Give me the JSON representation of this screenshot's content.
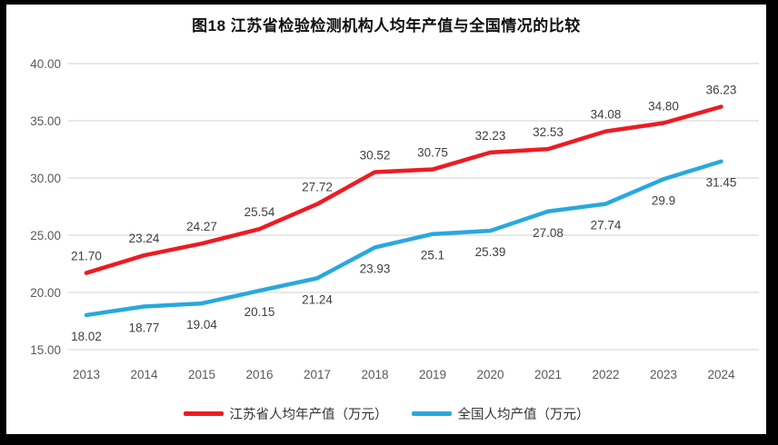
{
  "title": "图18  江苏省检验检测机构人均年产值与全国情况的比较",
  "chart_data": {
    "type": "line",
    "title": "图18  江苏省检验检测机构人均年产值与全国情况的比较",
    "categories": [
      "2013",
      "2014",
      "2015",
      "2016",
      "2017",
      "2018",
      "2019",
      "2020",
      "2021",
      "2022",
      "2023",
      "2024"
    ],
    "series": [
      {
        "name": "江苏省人均年产值（万元）",
        "color": "#ec1c24",
        "values": [
          21.7,
          23.24,
          24.27,
          25.54,
          27.72,
          30.52,
          30.75,
          32.23,
          32.53,
          34.08,
          34.8,
          36.23
        ],
        "labels": [
          "21.70",
          "23.24",
          "24.27",
          "25.54",
          "27.72",
          "30.52",
          "30.75",
          "32.23",
          "32.53",
          "34.08",
          "34.80",
          "36.23"
        ],
        "label_position": "above"
      },
      {
        "name": "全国人均产值（万元）",
        "color": "#29a8de",
        "values": [
          18.02,
          18.77,
          19.04,
          20.15,
          21.24,
          23.93,
          25.1,
          25.39,
          27.08,
          27.74,
          29.9,
          31.45
        ],
        "labels": [
          "18.02",
          "18.77",
          "19.04",
          "20.15",
          "21.24",
          "23.93",
          "25.1",
          "25.39",
          "27.08",
          "27.74",
          "29.9",
          "31.45"
        ],
        "label_position": "below"
      }
    ],
    "ylim": [
      15,
      40
    ],
    "yticks": [
      15,
      20,
      25,
      30,
      35,
      40
    ],
    "ytick_labels": [
      "15.00",
      "20.00",
      "25.00",
      "30.00",
      "35.00",
      "40.00"
    ],
    "grid": "horizontal-only",
    "gridline_color": "#d9d9d9",
    "legend_position": "bottom"
  }
}
